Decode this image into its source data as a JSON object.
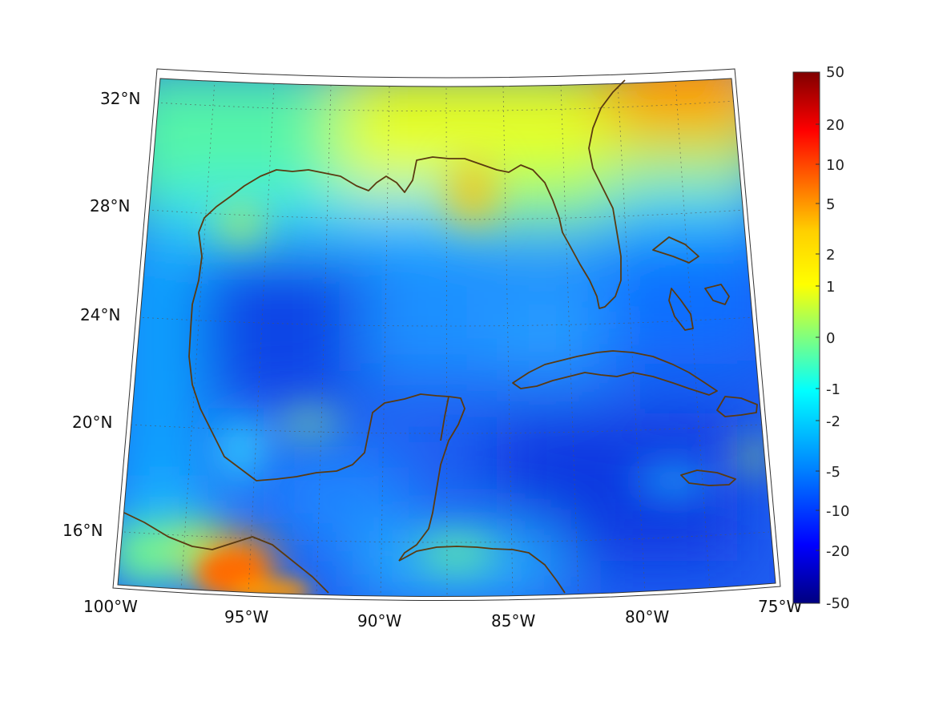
{
  "map": {
    "projection": "conic",
    "lon_range": [
      -100,
      -75
    ],
    "lat_range": [
      14,
      33
    ],
    "lat_labels": [
      "32°N",
      "28°N",
      "24°N",
      "20°N",
      "16°N"
    ],
    "lon_labels": [
      "100°W",
      "95°W",
      "90°W",
      "85°W",
      "80°W",
      "75°W"
    ],
    "coastline_color": "#5a3a10",
    "grid": "dotted"
  },
  "colorbar": {
    "colormap": "jet",
    "scale": "symmetric-log",
    "tick_labels": [
      "50",
      "20",
      "10",
      "5",
      "2",
      "1",
      "0",
      "-1",
      "-2",
      "-5",
      "-10",
      "-20",
      "-50"
    ],
    "range": [
      -50,
      50
    ]
  },
  "colors": {
    "deep_blue": "#00008b",
    "dark_red": "#800000",
    "land_outline": "#5a3a10"
  }
}
